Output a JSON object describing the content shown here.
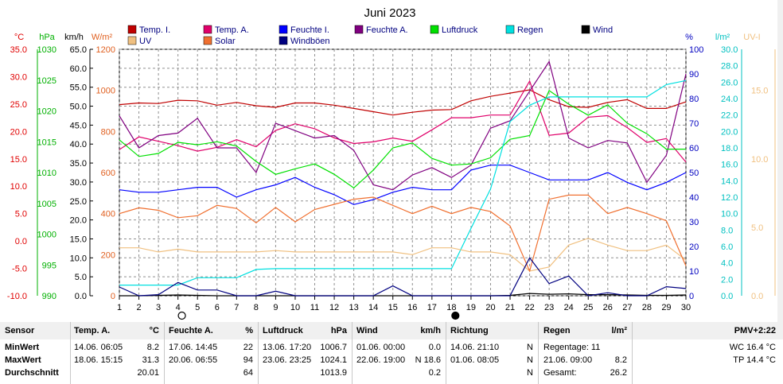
{
  "chart_data": {
    "type": "line",
    "title": "Juni 2023",
    "x": [
      1,
      2,
      3,
      4,
      5,
      6,
      7,
      8,
      9,
      10,
      11,
      12,
      13,
      14,
      15,
      16,
      17,
      18,
      19,
      20,
      21,
      22,
      23,
      24,
      25,
      26,
      27,
      28,
      29,
      30
    ],
    "x_ticks": [
      "1",
      "2",
      "3",
      "4",
      "5",
      "6",
      "7",
      "8",
      "9",
      "10",
      "11",
      "12",
      "13",
      "14",
      "15",
      "16",
      "17",
      "18",
      "19",
      "20",
      "21",
      "22",
      "23",
      "24",
      "25",
      "26",
      "27",
      "28",
      "29",
      "30"
    ],
    "axes": [
      {
        "id": "temp",
        "unit": "°C",
        "range": [
          -10,
          35
        ],
        "ticks": [
          "-10.0",
          "-5.0",
          "0.0",
          "5.0",
          "10.0",
          "15.0",
          "20.0",
          "25.0",
          "30.0",
          "35.0"
        ],
        "tick_values": [
          -10,
          -5,
          0,
          5,
          10,
          15,
          20,
          25,
          30,
          35
        ],
        "color": "#e00000",
        "side": "left"
      },
      {
        "id": "hpa",
        "unit": "hPa",
        "range": [
          990,
          1030
        ],
        "ticks": [
          "990",
          "995",
          "1000",
          "1005",
          "1010",
          "1015",
          "1020",
          "1025",
          "1030"
        ],
        "tick_values": [
          990,
          995,
          1000,
          1005,
          1010,
          1015,
          1020,
          1025,
          1030
        ],
        "color": "#00b000",
        "side": "left"
      },
      {
        "id": "kmh",
        "unit": "km/h",
        "range": [
          0,
          65
        ],
        "ticks": [
          "0.0",
          "5.0",
          "10.0",
          "15.0",
          "20.0",
          "25.0",
          "30.0",
          "35.0",
          "40.0",
          "45.0",
          "50.0",
          "55.0",
          "60.0",
          "65.0"
        ],
        "tick_values": [
          0,
          5,
          10,
          15,
          20,
          25,
          30,
          35,
          40,
          45,
          50,
          55,
          60,
          65
        ],
        "color": "#000000",
        "side": "left"
      },
      {
        "id": "wm2",
        "unit": "W/m²",
        "range": [
          0,
          1200
        ],
        "ticks": [
          "0",
          "200",
          "400",
          "600",
          "800",
          "1000",
          "1200"
        ],
        "tick_values": [
          0,
          200,
          400,
          600,
          800,
          1000,
          1200
        ],
        "color": "#e06020",
        "side": "left"
      },
      {
        "id": "pct",
        "unit": "%",
        "range": [
          0,
          100
        ],
        "ticks": [
          "0",
          "10",
          "20",
          "30",
          "40",
          "50",
          "60",
          "70",
          "80",
          "90",
          "100"
        ],
        "tick_values": [
          0,
          10,
          20,
          30,
          40,
          50,
          60,
          70,
          80,
          90,
          100
        ],
        "color": "#0000c0",
        "side": "right"
      },
      {
        "id": "lm2",
        "unit": "l/m²",
        "range": [
          0,
          30
        ],
        "ticks": [
          "0.0",
          "2.0",
          "4.0",
          "6.0",
          "8.0",
          "10.0",
          "12.0",
          "14.0",
          "16.0",
          "18.0",
          "20.0",
          "22.0",
          "24.0",
          "26.0",
          "28.0",
          "30.0"
        ],
        "tick_values": [
          0,
          2,
          4,
          6,
          8,
          10,
          12,
          14,
          16,
          18,
          20,
          22,
          24,
          26,
          28,
          30
        ],
        "color": "#00c0c0",
        "side": "right"
      },
      {
        "id": "uv",
        "unit": "UV-I",
        "range": [
          0,
          18
        ],
        "ticks": [
          "0.0",
          "5.0",
          "10.0",
          "15.0"
        ],
        "tick_values": [
          0,
          5,
          10,
          15
        ],
        "color": "#f0c080",
        "side": "right"
      }
    ],
    "legend": [
      {
        "name": "Temp. I.",
        "color": "#c00000"
      },
      {
        "name": "Temp. A.",
        "color": "#e0006a"
      },
      {
        "name": "Feuchte I.",
        "color": "#0000ff"
      },
      {
        "name": "Feuchte A.",
        "color": "#800080"
      },
      {
        "name": "Luftdruck",
        "color": "#00e000"
      },
      {
        "name": "Regen",
        "color": "#00e0e0"
      },
      {
        "name": "Wind",
        "color": "#000000"
      },
      {
        "name": "UV",
        "color": "#f0c080"
      },
      {
        "name": "Solar",
        "color": "#f07030"
      },
      {
        "name": "Windböen",
        "color": "#000080"
      }
    ],
    "series": [
      {
        "name": "Temp. I.",
        "axis": "temp",
        "color": "#c00000",
        "values": [
          24.9,
          25.2,
          25.1,
          25.7,
          25.6,
          24.8,
          25.3,
          24.7,
          24.4,
          25.2,
          25.2,
          24.8,
          24.2,
          23.6,
          23.0,
          23.5,
          23.9,
          24.0,
          25.6,
          26.4,
          27.0,
          27.6,
          25.8,
          24.5,
          24.4,
          25.3,
          25.8,
          24.2,
          24.2,
          25.4
        ]
      },
      {
        "name": "Temp. A.",
        "axis": "temp",
        "color": "#e0006a",
        "values": [
          16.7,
          19.0,
          18.2,
          17.4,
          16.4,
          17.1,
          18.5,
          17.2,
          20.2,
          21.4,
          20.5,
          18.8,
          17.8,
          18.1,
          18.8,
          18.2,
          20.3,
          22.5,
          22.5,
          23.0,
          23.0,
          29.2,
          19.3,
          19.7,
          22.6,
          22.9,
          20.7,
          18.0,
          18.7,
          14.4
        ]
      },
      {
        "name": "Feuchte I.",
        "axis": "pct",
        "color": "#0000ff",
        "values": [
          43,
          42,
          42,
          43,
          44,
          44,
          40,
          43,
          45,
          48,
          44,
          41,
          37,
          39,
          42,
          44,
          43,
          43,
          51,
          53,
          53,
          50,
          47,
          47,
          47,
          50,
          46,
          43,
          46,
          50
        ]
      },
      {
        "name": "Feuchte A.",
        "axis": "pct",
        "color": "#800080",
        "values": [
          73,
          60,
          65,
          66,
          72,
          60,
          60,
          50,
          70,
          67,
          64,
          65,
          59,
          45,
          43,
          49,
          52,
          48,
          53,
          68,
          71,
          83,
          95,
          64,
          60,
          63,
          62,
          46,
          57,
          90
        ]
      },
      {
        "name": "Luftdruck",
        "axis": "hpa",
        "color": "#00e000",
        "values": [
          1015.3,
          1012.6,
          1013.1,
          1014.9,
          1014.5,
          1015.0,
          1014.3,
          1011.8,
          1009.7,
          1010.6,
          1011.4,
          1009.7,
          1007.5,
          1010.4,
          1014.0,
          1014.8,
          1012.3,
          1011.2,
          1011.4,
          1012.4,
          1015.4,
          1016.0,
          1023.3,
          1021.1,
          1019.3,
          1021.0,
          1018.0,
          1016.3,
          1013.8,
          1013.8
        ]
      },
      {
        "name": "Regen",
        "axis": "lm2",
        "color": "#00e0e0",
        "values": [
          1.3,
          1.3,
          1.3,
          1.3,
          2.2,
          2.2,
          2.2,
          3.2,
          3.3,
          3.3,
          3.3,
          3.3,
          3.3,
          3.3,
          3.3,
          3.3,
          3.3,
          3.3,
          8.2,
          13.0,
          21.2,
          23.2,
          24.2,
          24.2,
          24.2,
          24.2,
          24.2,
          24.2,
          25.7,
          26.2
        ]
      },
      {
        "name": "Wind",
        "axis": "kmh",
        "color": "#000000",
        "values": [
          0.0,
          0.0,
          0.1,
          0.2,
          0.1,
          0.0,
          0.0,
          0.0,
          0.0,
          0.0,
          0.0,
          0.0,
          0.0,
          0.0,
          0.0,
          0.0,
          0.0,
          0.0,
          0.0,
          0.0,
          0.1,
          0.6,
          0.4,
          0.5,
          0.3,
          0.3,
          0.2,
          0.1,
          0.1,
          0.2
        ]
      },
      {
        "name": "UV",
        "axis": "uv",
        "color": "#f0c080",
        "values": [
          3.5,
          3.5,
          3.2,
          3.4,
          3.2,
          3.2,
          3.2,
          3.2,
          3.3,
          3.2,
          3.2,
          3.2,
          3.2,
          3.2,
          3.2,
          3.0,
          3.5,
          3.5,
          3.2,
          3.2,
          3.0,
          1.8,
          2.1,
          3.7,
          4.2,
          3.7,
          3.3,
          3.3,
          3.7,
          2.6
        ]
      },
      {
        "name": "Solar",
        "axis": "wm2",
        "color": "#f07030",
        "values": [
          400,
          428,
          416,
          380,
          390,
          440,
          425,
          355,
          430,
          360,
          420,
          445,
          470,
          480,
          440,
          400,
          436,
          400,
          430,
          410,
          340,
          120,
          470,
          490,
          490,
          400,
          430,
          400,
          365,
          145
        ]
      },
      {
        "name": "Windböen",
        "axis": "kmh",
        "color": "#000080",
        "values": [
          2.3,
          0.0,
          0.3,
          3.5,
          1.5,
          1.5,
          0.0,
          0.0,
          1.2,
          0.0,
          0.0,
          0.0,
          0.0,
          0.0,
          2.6,
          0.0,
          0.0,
          0.0,
          0.0,
          0.0,
          0.0,
          10.0,
          3.2,
          5.2,
          0.0,
          0.8,
          0.0,
          0.0,
          2.4,
          1.9
        ]
      }
    ],
    "markers": [
      {
        "x": 4.2,
        "symbol": "full-moon-icon"
      },
      {
        "x": 18.2,
        "symbol": "new-moon-icon"
      }
    ],
    "grid": true
  },
  "table": {
    "headers": [
      "Sensor",
      "Temp. A.",
      "°C",
      "Feuchte A.",
      "%",
      "Luftdruck",
      "hPa",
      "Wind",
      "km/h",
      "Richtung",
      "Regen",
      "l/m²",
      "PMV+2:22"
    ],
    "rows": [
      {
        "label": "MinWert",
        "temp": [
          "14.06.  06:05",
          "8.2"
        ],
        "feuchte": [
          "17.06.  14:45",
          "22"
        ],
        "druck": [
          "13.06.  17:20",
          "1006.7"
        ],
        "wind": [
          "01.06.  00:00",
          "0.0"
        ],
        "richtung": [
          "14.06.  21:10",
          "N"
        ],
        "regen": [
          "Regentage: 11",
          ""
        ],
        "extra": "WC 16.4 °C"
      },
      {
        "label": "MaxWert",
        "temp": [
          "18.06.  15:15",
          "31.3"
        ],
        "feuchte": [
          "20.06.  06:55",
          "94"
        ],
        "druck": [
          "23.06.  23:25",
          "1024.1"
        ],
        "wind": [
          "22.06.  19:00",
          "N 18.6"
        ],
        "richtung": [
          "01.06.  08:05",
          "N"
        ],
        "regen": [
          "21.06.  09:00",
          "8.2"
        ],
        "extra": "TP 14.4 °C"
      },
      {
        "label": "Durchschnitt",
        "temp": [
          "",
          "20.01"
        ],
        "feuchte": [
          "",
          "64"
        ],
        "druck": [
          "",
          "1013.9"
        ],
        "wind": [
          "",
          "0.2"
        ],
        "richtung": [
          "",
          "N"
        ],
        "regen": [
          "Gesamt:",
          "26.2"
        ],
        "extra": ""
      }
    ]
  }
}
